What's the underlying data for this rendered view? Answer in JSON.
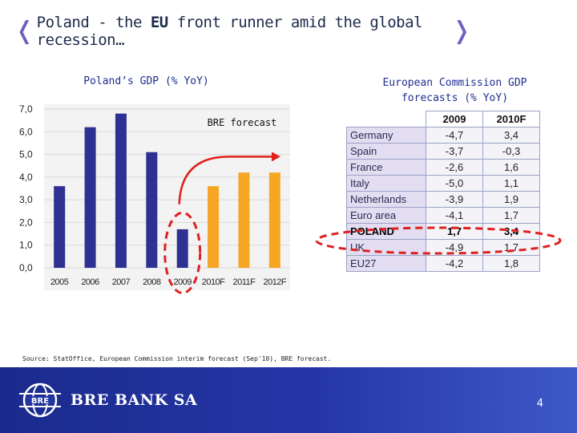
{
  "slide": {
    "title_prefix": "Poland - the ",
    "title_bold": "EU",
    "title_suffix": " front runner amid the global recession…",
    "source": "Source: StatOffice, European Commission interim forecast (Sep'10), BRE forecast.",
    "bank_name": "BRE BANK SA",
    "logo_text": "BRE",
    "page_number": "4"
  },
  "chart_data": {
    "type": "bar",
    "title": "Poland’s GDP (% YoY)",
    "categories": [
      "2005",
      "2006",
      "2007",
      "2008",
      "2009",
      "2010F",
      "2011F",
      "2012F"
    ],
    "values": [
      3.6,
      6.2,
      6.8,
      5.1,
      1.7,
      3.6,
      4.2,
      4.2
    ],
    "ylim": [
      0,
      7
    ],
    "yticks": [
      "0,0",
      "1,0",
      "2,0",
      "3,0",
      "4,0",
      "5,0",
      "6,0",
      "7,0"
    ],
    "forecast_label": "BRE forecast",
    "colors": {
      "actual": "#2e3192",
      "forecast": "#f6a623",
      "highlight": "#e02020",
      "grid": "#d9d9d9"
    },
    "highlight_category": "2009"
  },
  "table": {
    "title": "European Commission GDP forecasts (% YoY)",
    "headers": [
      "2009",
      "2010F"
    ],
    "rows": [
      {
        "country": "Germany",
        "values": [
          "-4,7",
          "3,4"
        ]
      },
      {
        "country": "Spain",
        "values": [
          "-3,7",
          "-0,3"
        ]
      },
      {
        "country": "France",
        "values": [
          "-2,6",
          "1,6"
        ]
      },
      {
        "country": "Italy",
        "values": [
          "-5,0",
          "1,1"
        ]
      },
      {
        "country": "Netherlands",
        "values": [
          "-3,9",
          "1,9"
        ]
      },
      {
        "country": "Euro area",
        "values": [
          "-4,1",
          "1,7"
        ]
      },
      {
        "country": "POLAND",
        "values": [
          "1,7",
          "3,4"
        ]
      },
      {
        "country": "UK",
        "values": [
          "-4,9",
          "1,7"
        ]
      },
      {
        "country": "EU27",
        "values": [
          "-4,2",
          "1,8"
        ]
      }
    ],
    "highlight_row": "POLAND"
  }
}
